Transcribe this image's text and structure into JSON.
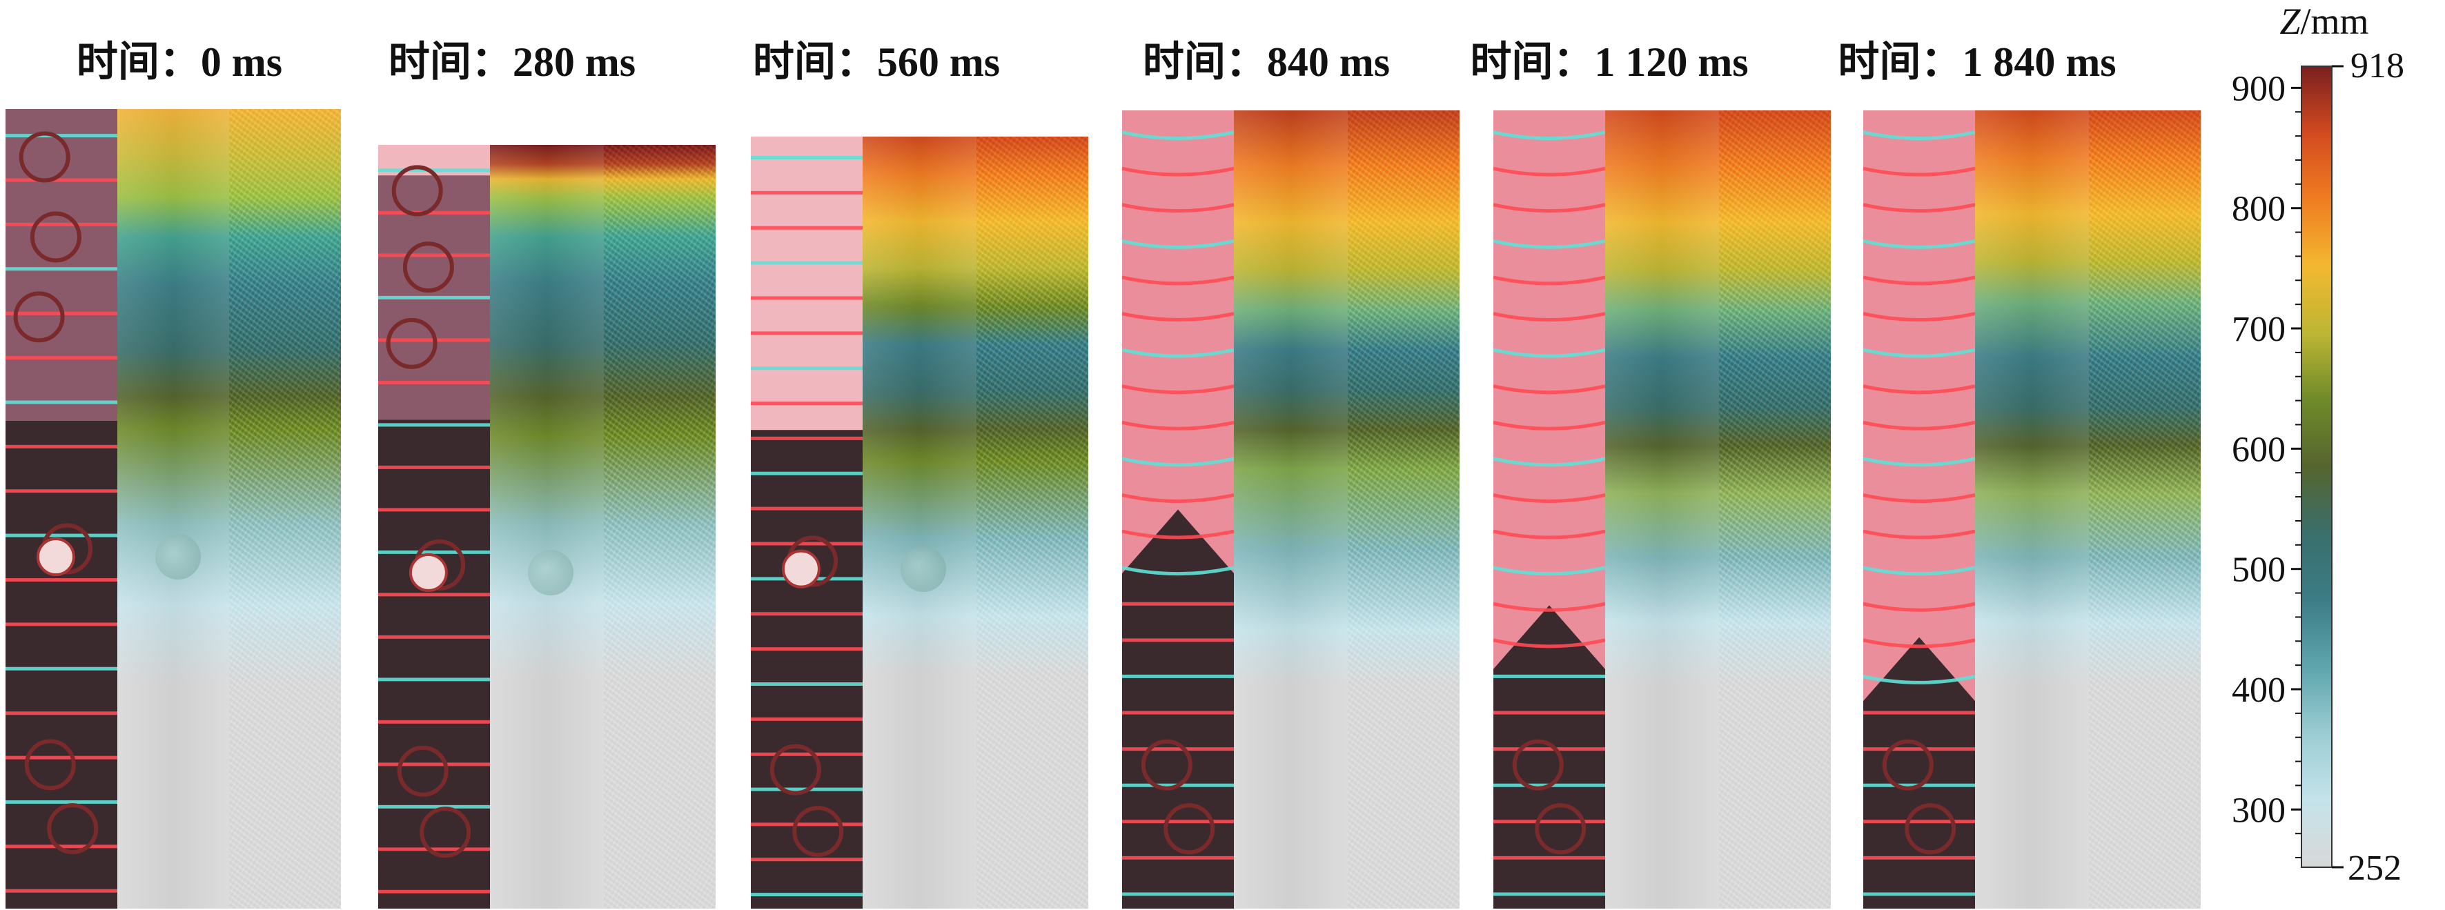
{
  "frames": [
    {
      "title": "时间：0 ms"
    },
    {
      "title": "时间：280 ms"
    },
    {
      "title": "时间：560 ms"
    },
    {
      "title": "时间：840 ms"
    },
    {
      "title": "时间：1 120 ms"
    },
    {
      "title": "时间：1 840 ms"
    }
  ],
  "colorbar": {
    "title_var": "Z",
    "title_unit": "/mm",
    "max_label": "918",
    "min_label": "252",
    "ticks": [
      "900",
      "800",
      "700",
      "600",
      "500",
      "400",
      "300"
    ],
    "colors": [
      "#d8d8d8",
      "#c5e3ea",
      "#9cccd3",
      "#5ea5ad",
      "#3c7c86",
      "#3a6f6c",
      "#56652e",
      "#6f8a2a",
      "#bdb634",
      "#f2b830",
      "#f07d22",
      "#d24a1f",
      "#7a1f1f"
    ]
  }
}
